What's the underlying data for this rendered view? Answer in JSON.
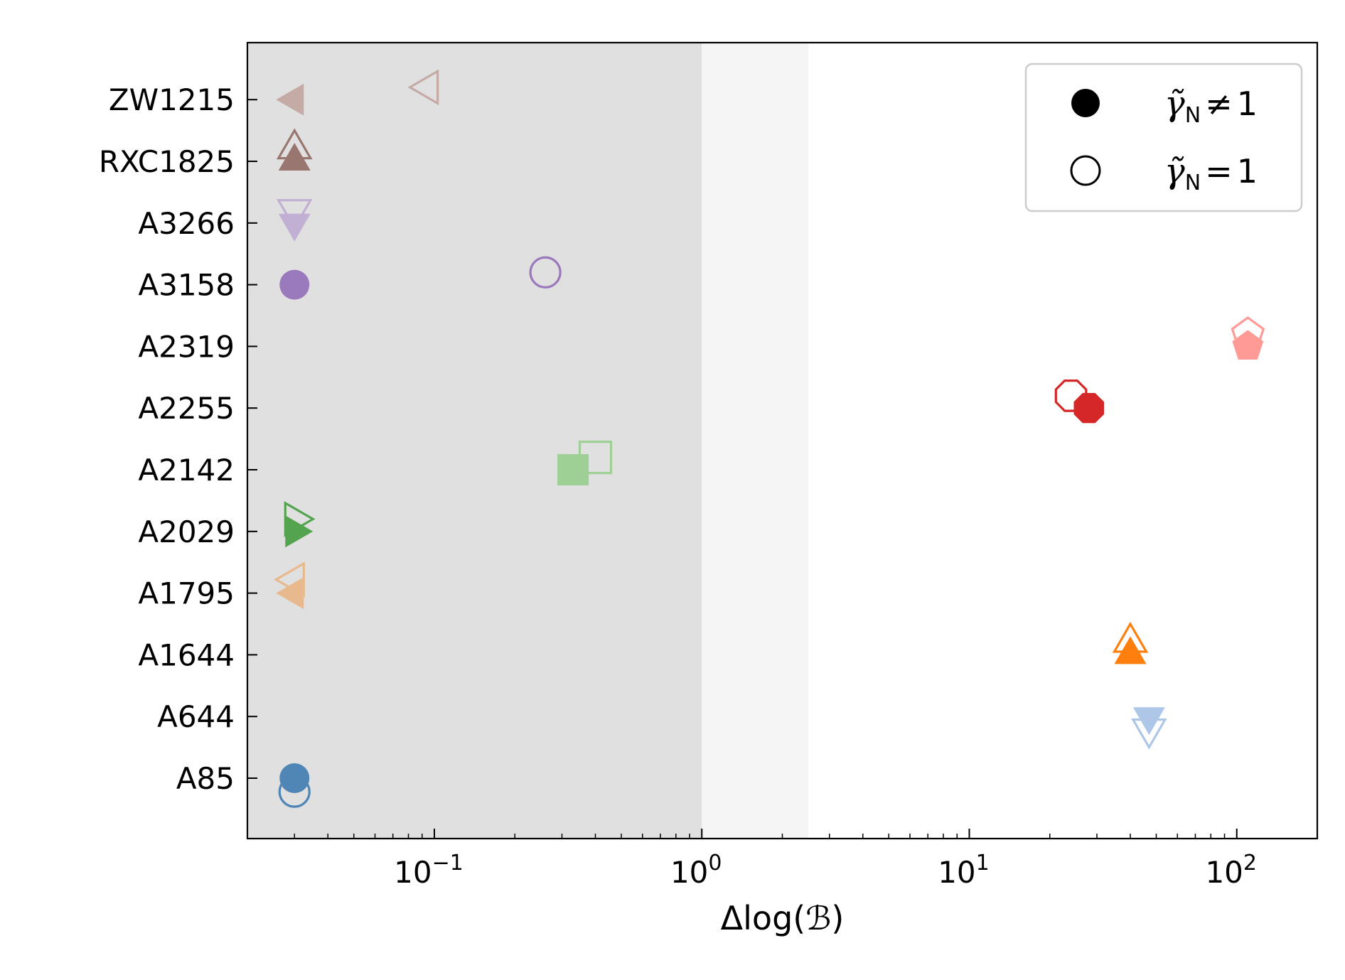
{
  "chart_data": {
    "type": "scatter",
    "xlabel": "Δlog(ℬ)",
    "xscale": "log",
    "xlim": [
      0.02,
      200
    ],
    "x_ticks": [
      {
        "value": 0.1,
        "base": "10",
        "exp": "−1"
      },
      {
        "value": 1,
        "base": "10",
        "exp": "0"
      },
      {
        "value": 10,
        "base": "10",
        "exp": "1"
      },
      {
        "value": 100,
        "base": "10",
        "exp": "2"
      }
    ],
    "categories": [
      "A85",
      "A644",
      "A1644",
      "A1795",
      "A2029",
      "A2142",
      "A2255",
      "A2319",
      "A3158",
      "A3266",
      "RXC1825",
      "ZW1215"
    ],
    "shaded_regions": [
      {
        "from": 0.02,
        "to": 1.0,
        "color": "#e0e0e0"
      },
      {
        "from": 1.0,
        "to": 2.5,
        "color": "#f5f5f5"
      }
    ],
    "legend": {
      "position": "top-right",
      "entries": [
        {
          "marker": "filled",
          "gamma": "γ̃",
          "sub": "N",
          "op": "≠",
          "rhs": "1"
        },
        {
          "marker": "open",
          "gamma": "γ̃",
          "sub": "N",
          "op": "=",
          "rhs": "1"
        }
      ]
    },
    "points": [
      {
        "cluster": "A85",
        "marker": "circle",
        "color": "#4f86b6",
        "filled_x": 0.03,
        "open_x": 0.03,
        "filled_off": 0,
        "open_off": -0.22
      },
      {
        "cluster": "A644",
        "marker": "triangle-down",
        "color": "#aec7e8",
        "filled_x": 47,
        "open_x": 47,
        "filled_off": 0,
        "open_off": -0.2
      },
      {
        "cluster": "A1644",
        "marker": "triangle-up",
        "color": "#ff7f0e",
        "filled_x": 40,
        "open_x": 40,
        "filled_off": 0,
        "open_off": 0.2
      },
      {
        "cluster": "A1795",
        "marker": "triangle-left",
        "color": "#e8b98c",
        "filled_x": 0.03,
        "open_x": 0.03,
        "filled_off": 0,
        "open_off": 0.22
      },
      {
        "cluster": "A2029",
        "marker": "triangle-right",
        "color": "#54a34f",
        "filled_x": 0.03,
        "open_x": 0.03,
        "filled_off": 0,
        "open_off": 0.2
      },
      {
        "cluster": "A2142",
        "marker": "square",
        "color": "#9ed095",
        "filled_x": 0.33,
        "open_x": 0.4,
        "filled_off": 0,
        "open_off": 0.2
      },
      {
        "cluster": "A2255",
        "marker": "octagon",
        "color": "#d62728",
        "filled_x": 28,
        "open_x": 24,
        "filled_off": 0,
        "open_off": 0.2
      },
      {
        "cluster": "A2319",
        "marker": "pentagon",
        "color": "#ff9a96",
        "filled_x": 110,
        "open_x": 110,
        "filled_off": 0,
        "open_off": 0.2
      },
      {
        "cluster": "A3158",
        "marker": "circle",
        "color": "#9a79bc",
        "filled_x": 0.03,
        "open_x": 0.26,
        "filled_off": 0,
        "open_off": 0.2
      },
      {
        "cluster": "A3266",
        "marker": "triangle-down",
        "color": "#c1b0d3",
        "filled_x": 0.03,
        "open_x": 0.03,
        "filled_off": 0,
        "open_off": 0.22
      },
      {
        "cluster": "RXC1825",
        "marker": "triangle-up",
        "color": "#9a7670",
        "filled_x": 0.03,
        "open_x": 0.03,
        "filled_off": 0,
        "open_off": 0.2
      },
      {
        "cluster": "ZW1215",
        "marker": "triangle-left",
        "color": "#c5aba6",
        "filled_x": 0.03,
        "open_x": 0.095,
        "filled_off": 0,
        "open_off": 0.2
      }
    ]
  }
}
